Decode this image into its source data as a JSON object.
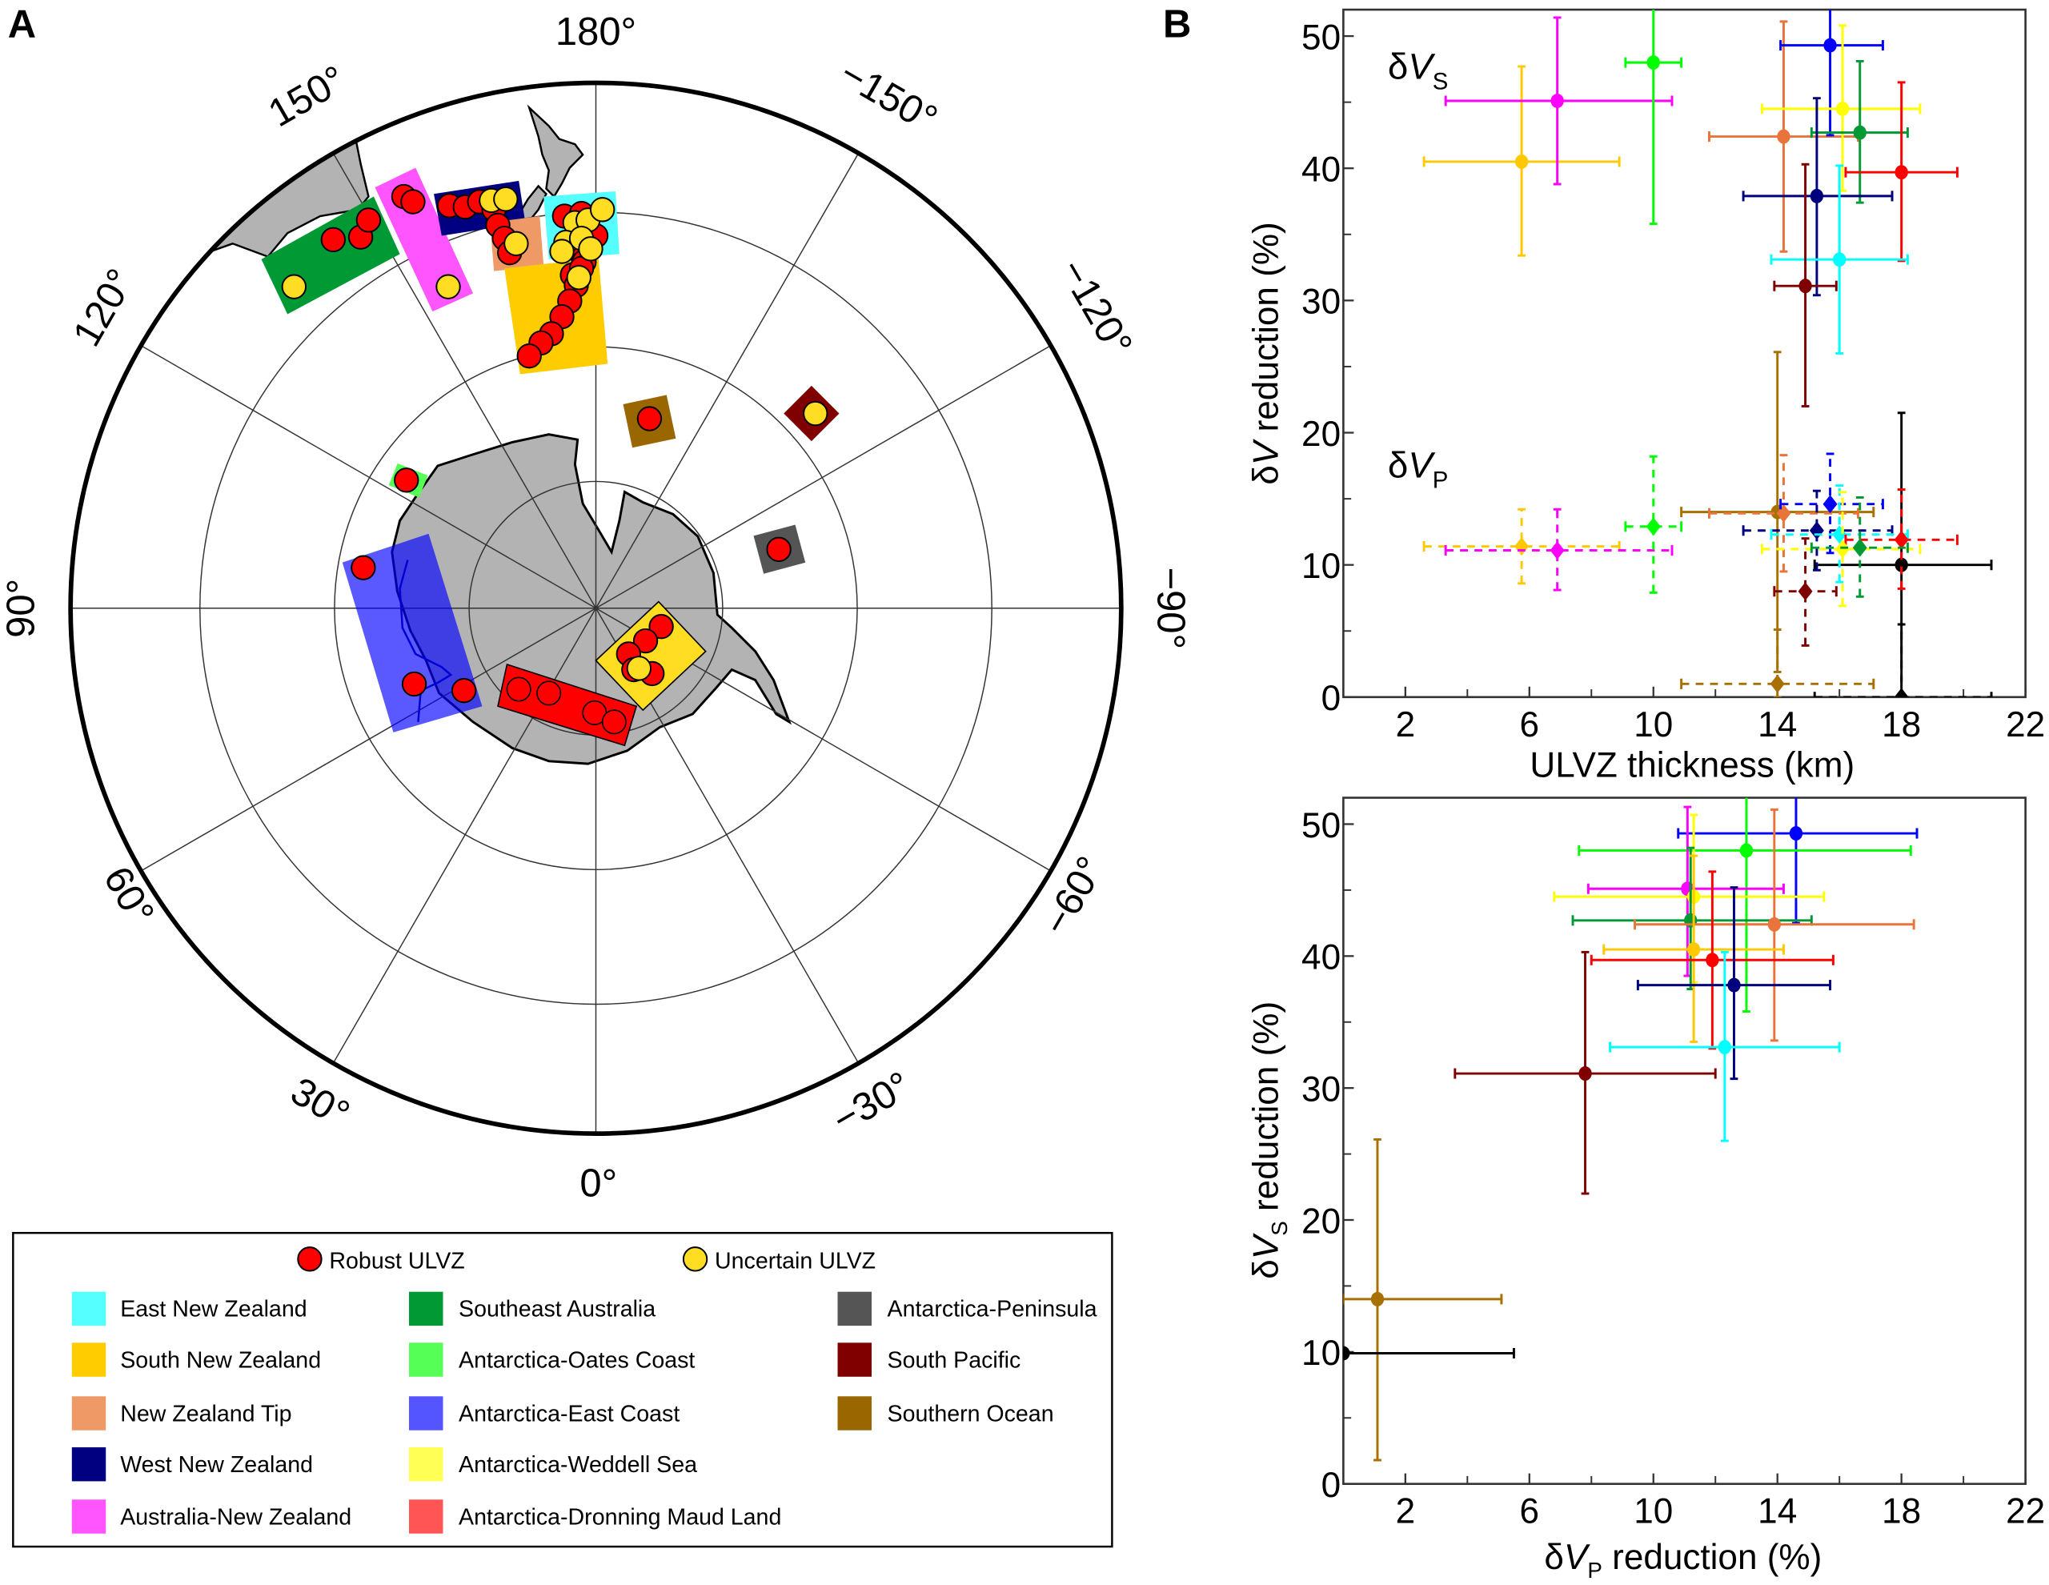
{
  "figure": {
    "panel_a_label": "A",
    "panel_b_label": "B"
  },
  "map": {
    "longitude_labels": {
      "lon_180": "180°",
      "lon_150": "150°",
      "lon_m150": "−150°",
      "lon_120": "120°",
      "lon_m120": "−120°",
      "lon_90": "90°",
      "lon_m90": "−90°",
      "lon_60": "60°",
      "lon_m60": "−60°",
      "lon_30": "30°",
      "lon_m30": "−30°",
      "lon_0": "0°"
    },
    "land_color": "#b3b3b3",
    "robust_color": "#ff0000",
    "uncertain_color": "#ffdd22"
  },
  "legend": {
    "robust_label": "Robust ULVZ",
    "uncertain_label": "Uncertain ULVZ",
    "items": [
      {
        "name": "East New Zealand",
        "color": "#55ffff"
      },
      {
        "name": "South New Zealand",
        "color": "#ffcc00"
      },
      {
        "name": "New Zealand Tip",
        "color": "#ee9966"
      },
      {
        "name": "West New Zealand",
        "color": "#000080"
      },
      {
        "name": "Australia-New Zealand",
        "color": "#ff55ff"
      },
      {
        "name": "Southeast Australia",
        "color": "#009933"
      },
      {
        "name": "Antarctica-Oates Coast",
        "color": "#55ff55"
      },
      {
        "name": "Antarctica-East Coast",
        "color": "#5555ff"
      },
      {
        "name": "Antarctica-Weddell Sea",
        "color": "#ffff55"
      },
      {
        "name": "Antarctica-Dronning Maud Land",
        "color": "#ff5555"
      },
      {
        "name": "Antarctica-Peninsula",
        "color": "#555555"
      },
      {
        "name": "South Pacific",
        "color": "#800000"
      },
      {
        "name": "Southern Ocean",
        "color": "#996600"
      }
    ]
  },
  "plot_colors": {
    "East New Zealand": "#00ffff",
    "South New Zealand": "#ffc800",
    "New Zealand Tip": "#e8743b",
    "West New Zealand": "#00007f",
    "Australia-New Zealand": "#ff00ff",
    "Southeast Australia": "#009933",
    "Antarctica-Oates Coast": "#00ff00",
    "Antarctica-East Coast": "#0000ff",
    "Antarctica-Weddell Sea": "#ffff00",
    "Antarctica-Dronning Maud Land": "#ff0000",
    "Antarctica-Peninsula": "#000000",
    "South Pacific": "#7f0000",
    "Southern Ocean": "#a87000"
  },
  "chart_data": [
    {
      "type": "scatter",
      "xlabel": "ULVZ thickness (km)",
      "ylabel_parts": [
        "δ",
        "V",
        " reduction (%)"
      ],
      "xlim": [
        0,
        22
      ],
      "ylim": [
        0,
        52
      ],
      "xticks": [
        2,
        6,
        10,
        14,
        18,
        22
      ],
      "xminor": [
        4,
        8,
        12,
        16,
        20
      ],
      "yticks": [
        0,
        10,
        20,
        30,
        40,
        50
      ],
      "yminor": [
        5,
        15,
        25,
        35,
        45
      ],
      "grid": false,
      "series": [
        {
          "label_parts": [
            "δ",
            "V",
            "S"
          ],
          "line_style": "solid",
          "marker": "circle",
          "points": [
            {
              "region": "South New Zealand",
              "x": 5.75,
              "y": 40.5,
              "xerr": [
                2.6,
                8.9
              ],
              "yerr": [
                33.4,
                47.7
              ]
            },
            {
              "region": "Australia-New Zealand",
              "x": 6.9,
              "y": 45.1,
              "xerr": [
                3.3,
                10.6
              ],
              "yerr": [
                38.8,
                51.4
              ]
            },
            {
              "region": "Antarctica-Oates Coast",
              "x": 10.0,
              "y": 48.0,
              "xerr": [
                9.1,
                10.9
              ],
              "yerr": [
                35.8,
                53
              ]
            },
            {
              "region": "New Zealand Tip",
              "x": 14.2,
              "y": 42.4,
              "xerr": [
                11.8,
                16.6
              ],
              "yerr": [
                33.7,
                51.1
              ]
            },
            {
              "region": "Antarctica-East Coast",
              "x": 15.7,
              "y": 49.3,
              "xerr": [
                14.1,
                17.4
              ],
              "yerr": [
                42.5,
                53
              ]
            },
            {
              "region": "Antarctica-Weddell Sea",
              "x": 16.1,
              "y": 44.5,
              "xerr": [
                13.5,
                18.6
              ],
              "yerr": [
                38.3,
                50.8
              ]
            },
            {
              "region": "Southeast Australia",
              "x": 16.66,
              "y": 42.7,
              "xerr": [
                15.1,
                18.2
              ],
              "yerr": [
                37.4,
                48.1
              ]
            },
            {
              "region": "Antarctica-Dronning Maud Land",
              "x": 18.0,
              "y": 39.7,
              "xerr": [
                16.2,
                19.8
              ],
              "yerr": [
                33.0,
                46.5
              ]
            },
            {
              "region": "West New Zealand",
              "x": 15.27,
              "y": 37.9,
              "xerr": [
                12.9,
                17.7
              ],
              "yerr": [
                30.4,
                45.3
              ]
            },
            {
              "region": "East New Zealand",
              "x": 16.0,
              "y": 33.1,
              "xerr": [
                13.8,
                18.2
              ],
              "yerr": [
                26.0,
                40.2
              ]
            },
            {
              "region": "South Pacific",
              "x": 14.9,
              "y": 31.1,
              "xerr": [
                13.9,
                15.9
              ],
              "yerr": [
                22.0,
                40.3
              ]
            },
            {
              "region": "Southern Ocean",
              "x": 14.0,
              "y": 14.0,
              "xerr": [
                10.9,
                17.1
              ],
              "yerr": [
                1.9,
                26.1
              ]
            },
            {
              "region": "Antarctica-Peninsula",
              "x": 18.0,
              "y": 10.0,
              "xerr": [
                15.2,
                20.9
              ],
              "yerr": [
                0,
                21.5
              ]
            }
          ]
        },
        {
          "label_parts": [
            "δ",
            "V",
            "P"
          ],
          "line_style": "dashed",
          "marker": "diamond",
          "points": [
            {
              "region": "South New Zealand",
              "x": 5.75,
              "y": 11.4,
              "xerr": [
                2.6,
                8.9
              ],
              "yerr": [
                8.6,
                14.2
              ]
            },
            {
              "region": "Australia-New Zealand",
              "x": 6.9,
              "y": 11.1,
              "xerr": [
                3.3,
                10.6
              ],
              "yerr": [
                8.1,
                14.2
              ]
            },
            {
              "region": "Antarctica-Oates Coast",
              "x": 10.0,
              "y": 12.9,
              "xerr": [
                9.1,
                10.9
              ],
              "yerr": [
                7.9,
                18.2
              ]
            },
            {
              "region": "New Zealand Tip",
              "x": 14.2,
              "y": 13.9,
              "xerr": [
                11.8,
                16.6
              ],
              "yerr": [
                9.5,
                18.3
              ]
            },
            {
              "region": "Antarctica-East Coast",
              "x": 15.7,
              "y": 14.6,
              "xerr": [
                14.1,
                17.4
              ],
              "yerr": [
                10.9,
                18.4
              ]
            },
            {
              "region": "West New Zealand",
              "x": 15.27,
              "y": 12.6,
              "xerr": [
                12.9,
                17.7
              ],
              "yerr": [
                9.6,
                15.6
              ]
            },
            {
              "region": "East New Zealand",
              "x": 16.0,
              "y": 12.3,
              "xerr": [
                13.8,
                18.2
              ],
              "yerr": [
                8.7,
                16.0
              ]
            },
            {
              "region": "Antarctica-Dronning Maud Land",
              "x": 18.0,
              "y": 11.9,
              "xerr": [
                16.2,
                19.8
              ],
              "yerr": [
                8.2,
                15.7
              ]
            },
            {
              "region": "Antarctica-Weddell Sea",
              "x": 16.1,
              "y": 11.2,
              "xerr": [
                13.5,
                18.6
              ],
              "yerr": [
                6.9,
                15.5
              ]
            },
            {
              "region": "Southeast Australia",
              "x": 16.66,
              "y": 11.3,
              "xerr": [
                15.1,
                18.2
              ],
              "yerr": [
                7.6,
                15.1
              ]
            },
            {
              "region": "South Pacific",
              "x": 14.9,
              "y": 8.0,
              "xerr": [
                13.9,
                15.9
              ],
              "yerr": [
                3.9,
                12.0
              ]
            },
            {
              "region": "Southern Ocean",
              "x": 14.0,
              "y": 1.0,
              "xerr": [
                10.9,
                17.1
              ],
              "yerr": [
                0,
                5.1
              ]
            },
            {
              "region": "Antarctica-Peninsula",
              "x": 18.0,
              "y": 0.0,
              "xerr": [
                15.2,
                20.9
              ],
              "yerr": [
                0,
                5.5
              ]
            }
          ]
        }
      ]
    },
    {
      "type": "scatter",
      "xlabel_parts": [
        "δ",
        "V",
        "P",
        " reduction (%)"
      ],
      "ylabel_parts": [
        "δ",
        "V",
        "S",
        " reduction (%)"
      ],
      "xlim": [
        0,
        22
      ],
      "ylim": [
        0,
        52
      ],
      "xticks": [
        2,
        6,
        10,
        14,
        18,
        22
      ],
      "xminor": [
        4,
        8,
        12,
        16,
        20
      ],
      "yticks": [
        0,
        10,
        20,
        30,
        40,
        50
      ],
      "yminor": [
        5,
        15,
        25,
        35,
        45
      ],
      "grid": false,
      "series": [
        {
          "line_style": "solid",
          "marker": "circle",
          "points": [
            {
              "region": "Antarctica-East Coast",
              "x": 14.6,
              "y": 49.3,
              "xerr": [
                10.8,
                18.5
              ],
              "yerr": [
                42.5,
                53
              ]
            },
            {
              "region": "Antarctica-Oates Coast",
              "x": 13.0,
              "y": 48.0,
              "xerr": [
                7.6,
                18.3
              ],
              "yerr": [
                35.8,
                53
              ]
            },
            {
              "region": "Australia-New Zealand",
              "x": 11.1,
              "y": 45.1,
              "xerr": [
                7.9,
                14.2
              ],
              "yerr": [
                38.5,
                51.3
              ]
            },
            {
              "region": "Antarctica-Weddell Sea",
              "x": 11.3,
              "y": 44.5,
              "xerr": [
                6.8,
                15.5
              ],
              "yerr": [
                38.0,
                50.7
              ]
            },
            {
              "region": "Southeast Australia",
              "x": 11.2,
              "y": 42.7,
              "xerr": [
                7.4,
                15.1
              ],
              "yerr": [
                37.5,
                48.2
              ]
            },
            {
              "region": "New Zealand Tip",
              "x": 13.9,
              "y": 42.4,
              "xerr": [
                9.4,
                18.4
              ],
              "yerr": [
                33.6,
                51.1
              ]
            },
            {
              "region": "South New Zealand",
              "x": 11.3,
              "y": 40.5,
              "xerr": [
                8.4,
                14.2
              ],
              "yerr": [
                33.5,
                47.6
              ]
            },
            {
              "region": "Antarctica-Dronning Maud Land",
              "x": 11.9,
              "y": 39.7,
              "xerr": [
                8.0,
                15.8
              ],
              "yerr": [
                33.0,
                46.4
              ]
            },
            {
              "region": "West New Zealand",
              "x": 12.6,
              "y": 37.8,
              "xerr": [
                9.5,
                15.7
              ],
              "yerr": [
                30.7,
                45.2
              ]
            },
            {
              "region": "East New Zealand",
              "x": 12.3,
              "y": 33.1,
              "xerr": [
                8.6,
                16.0
              ],
              "yerr": [
                26.0,
                40.3
              ]
            },
            {
              "region": "South Pacific",
              "x": 7.8,
              "y": 31.1,
              "xerr": [
                3.6,
                12.0
              ],
              "yerr": [
                22.0,
                40.3
              ]
            },
            {
              "region": "Southern Ocean",
              "x": 1.1,
              "y": 14.0,
              "xerr": [
                0,
                5.1
              ],
              "yerr": [
                1.8,
                26.1
              ]
            },
            {
              "region": "Antarctica-Peninsula",
              "x": 0.0,
              "y": 9.9,
              "xerr": [
                0,
                5.5
              ],
              "yerr": [
                9.9,
                9.9
              ]
            }
          ]
        }
      ]
    }
  ]
}
